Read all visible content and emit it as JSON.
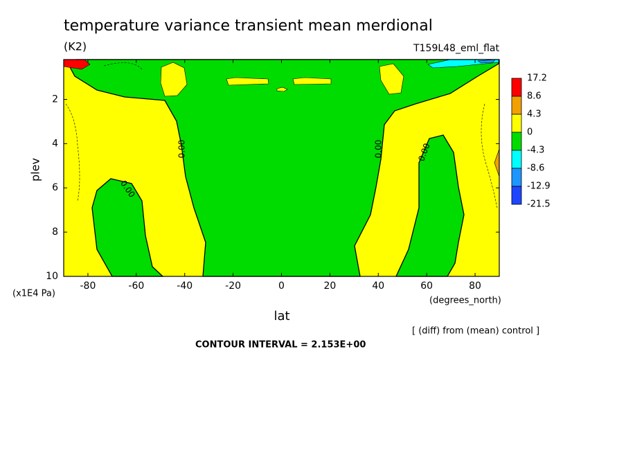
{
  "chart_data": {
    "type": "contour",
    "title": "temperature variance transient mean merdional",
    "subtitle": "(K2)",
    "annotation": "T159L48_eml_flat",
    "xlabel": "lat",
    "ylabel": "plev",
    "xunit": "(degrees_north)",
    "yunit": "(x1E4 Pa)",
    "footnote": "[ (diff) from (mean) control ]",
    "contour_interval": "CONTOUR INTERVAL = 2.153E+00",
    "contour_labels": [
      "0.00",
      "0.00",
      "0.00",
      "0.00"
    ],
    "xlim": [
      -90,
      90
    ],
    "xticks": [
      -80,
      -60,
      -40,
      -20,
      0,
      20,
      40,
      60,
      80
    ],
    "ylim": [
      10,
      0.2
    ],
    "yticks": [
      2,
      4,
      6,
      8,
      10
    ],
    "colorbar": {
      "levels": [
        17.2,
        8.6,
        4.3,
        0,
        -4.3,
        -8.6,
        -12.9,
        -21.5
      ],
      "colors": [
        "#ff0000",
        "#f0a000",
        "#ffff00",
        "#00dc00",
        "#00ffff",
        "#1e96ff",
        "#1e46ff"
      ]
    }
  }
}
